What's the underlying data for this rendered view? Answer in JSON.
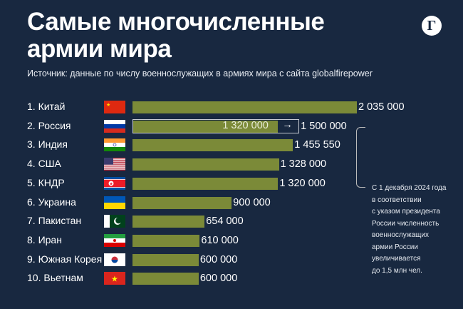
{
  "header": {
    "title_line1": "Самые многочисленные",
    "title_line2": "армии мира",
    "logo": "Г",
    "source": "Источник: данные по числу военнослужащих в армиях мира с сайта globalfirepower"
  },
  "chart_data": {
    "type": "bar",
    "orientation": "horizontal",
    "categories": [
      "1. Китай",
      "2. Россия",
      "3. Индия",
      "4. США",
      "5. КНДР",
      "6. Украина",
      "7. Пакистан",
      "8. Иран",
      "9. Южная Корея",
      "10. Вьетнам"
    ],
    "values": [
      2035000,
      1320000,
      1455550,
      1328000,
      1320000,
      900000,
      654000,
      610000,
      600000,
      600000
    ],
    "labels": [
      "2 035 000",
      "1 320 000",
      "1 455 550",
      "1 328 000",
      "1 320 000",
      "900 000",
      "654 000",
      "610 000",
      "600 000",
      "600 000"
    ],
    "flags": [
      "china",
      "russia",
      "india",
      "usa",
      "north-korea",
      "ukraine",
      "pakistan",
      "iran",
      "south-korea",
      "vietnam"
    ],
    "russia_target": 1500000,
    "russia_target_label": "1 500 000",
    "arrow": "→",
    "bar_color": "#7b8a38",
    "annotation": [
      "С 1 декабря 2024 года",
      "в соответствии",
      "с указом президента",
      "России численность",
      "военнослужащих",
      "армии России",
      "увеличивается",
      "до 1,5 млн чел."
    ]
  }
}
